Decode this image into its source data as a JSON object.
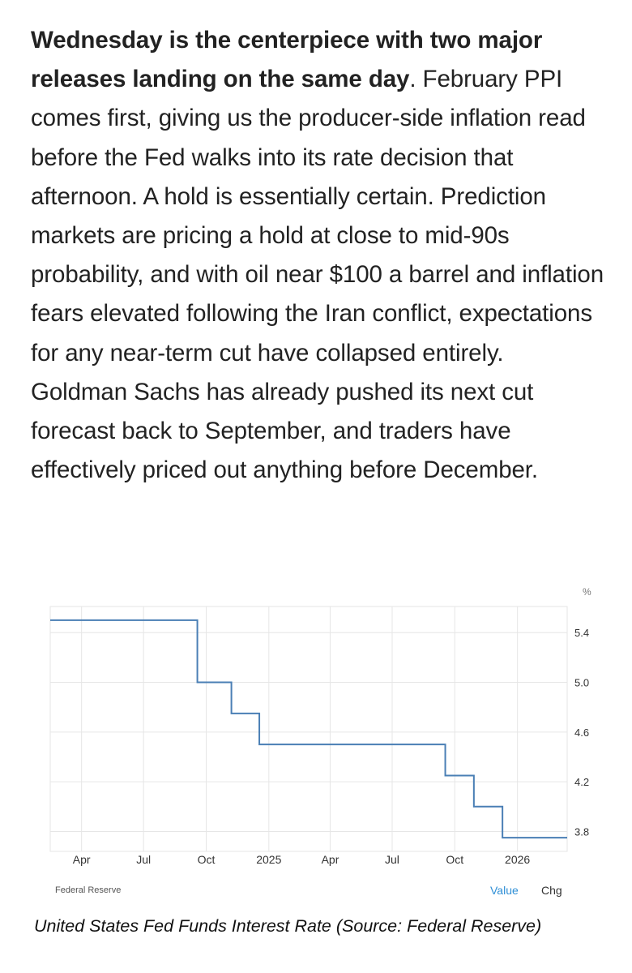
{
  "article": {
    "bold_lead": "Wednesday is the centerpiece with two major releases landing on the same day",
    "body": ". February PPI comes first, giving us the producer-side inflation read before the Fed walks into its rate decision that afternoon. A hold is essentially certain. Prediction markets are pricing a hold at close to mid-90s probability, and with oil near $100 a barrel and inflation fears elevated following the Iran conflict, expectations for any near-term cut have collapsed entirely. Goldman Sachs has already pushed its next cut forecast back to September, and traders have effectively priced out anything before December."
  },
  "chart": {
    "unit": "%",
    "source": "Federal Reserve",
    "tabs": {
      "value": "Value",
      "chg": "Chg"
    },
    "caption": "United States Fed Funds Interest Rate (Source: Federal Reserve)"
  },
  "chart_data": {
    "type": "line",
    "step": true,
    "x": [
      "2024-02-15",
      "2024-09-18",
      "2024-11-07",
      "2024-12-18",
      "2025-09-17",
      "2025-10-29",
      "2025-12-10",
      "2026-03-15"
    ],
    "series": [
      {
        "values": [
          5.5,
          5.0,
          4.75,
          4.5,
          4.25,
          4.0,
          3.75,
          3.75
        ]
      }
    ],
    "x_range": [
      "2024-02-15",
      "2026-03-15"
    ],
    "xticks": [
      {
        "date": "2024-04-01",
        "label": "Apr"
      },
      {
        "date": "2024-07-01",
        "label": "Jul"
      },
      {
        "date": "2024-10-01",
        "label": "Oct"
      },
      {
        "date": "2025-01-01",
        "label": "2025"
      },
      {
        "date": "2025-04-01",
        "label": "Apr"
      },
      {
        "date": "2025-07-01",
        "label": "Jul"
      },
      {
        "date": "2025-10-01",
        "label": "Oct"
      },
      {
        "date": "2026-01-01",
        "label": "2026"
      }
    ],
    "yticks": [
      3.8,
      4.2,
      4.6,
      5.0,
      5.4
    ],
    "ylim": [
      3.64,
      5.61
    ],
    "grid": true,
    "line_color": "#4a7fb5",
    "grid_color": "#e6e6e6"
  }
}
